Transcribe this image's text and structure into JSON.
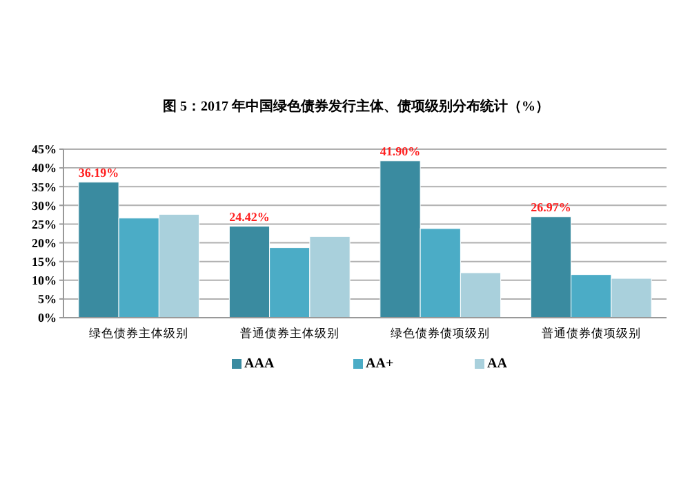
{
  "chart_data": {
    "type": "bar",
    "title": "图 5：2017 年中国绿色债券发行主体、债项级别分布统计（%）",
    "categories": [
      "绿色债券主体级别",
      "普通债券主体级别",
      "绿色债券债项级别",
      "普通债券债项级别"
    ],
    "series": [
      {
        "name": "AAA",
        "color": "#3a8ba0",
        "values": [
          36.19,
          24.42,
          41.9,
          26.97
        ],
        "value_labels": [
          "36.19%",
          "24.42%",
          "41.90%",
          "26.97%"
        ]
      },
      {
        "name": "AA+",
        "color": "#4bacc6",
        "values": [
          26.6,
          18.7,
          23.8,
          11.5
        ]
      },
      {
        "name": "AA",
        "color": "#a9d0dc",
        "values": [
          27.6,
          21.7,
          12,
          10.5
        ]
      }
    ],
    "ylim": [
      0,
      45
    ],
    "yticks": [
      {
        "value": 0,
        "label": "0%"
      },
      {
        "value": 5,
        "label": "5%"
      },
      {
        "value": 10,
        "label": "10%"
      },
      {
        "value": 15,
        "label": "15%"
      },
      {
        "value": 20,
        "label": "20%"
      },
      {
        "value": 25,
        "label": "25%"
      },
      {
        "value": 30,
        "label": "30%"
      },
      {
        "value": 35,
        "label": "35%"
      },
      {
        "value": 40,
        "label": "40%"
      },
      {
        "value": 45,
        "label": "45%"
      }
    ],
    "grid": "y",
    "legend": "bottom"
  }
}
